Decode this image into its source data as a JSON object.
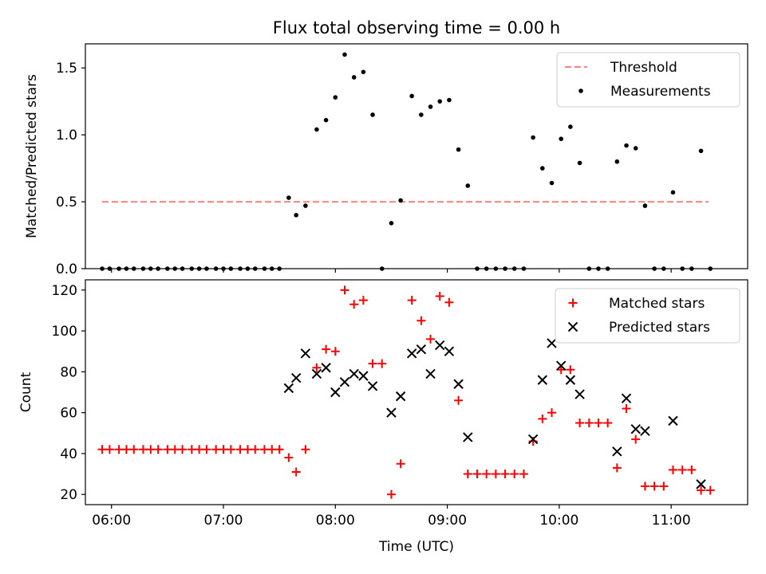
{
  "title": "Flux total observing time = 0.00 h",
  "xlabel": "Time (UTC)",
  "colors": {
    "threshold": "#ff8080",
    "measurements": "#000000",
    "matched": "#ff0000",
    "predicted": "#000000"
  },
  "chart_data": [
    {
      "type": "scatter",
      "ylabel": "Matched/Predicted stars",
      "xlim": [
        "05:46",
        "11:41"
      ],
      "ylim": [
        0,
        1.68
      ],
      "x_ticks": [
        "06:00",
        "07:00",
        "08:00",
        "09:00",
        "10:00",
        "11:00"
      ],
      "y_ticks": [
        "0.0",
        "0.5",
        "1.0",
        "1.5"
      ],
      "legend_position": "upper right",
      "series": [
        {
          "name": "Threshold",
          "kind": "line",
          "style": "dashed",
          "x": [
            "05:55",
            "11:20"
          ],
          "y": [
            0.5,
            0.5
          ]
        },
        {
          "name": "Measurements",
          "kind": "scatter",
          "marker": "dot",
          "points": [
            [
              "05:55",
              0.0
            ],
            [
              "05:59",
              0.0
            ],
            [
              "06:04",
              0.0
            ],
            [
              "06:08",
              0.0
            ],
            [
              "06:12",
              0.0
            ],
            [
              "06:17",
              0.0
            ],
            [
              "06:21",
              0.0
            ],
            [
              "06:25",
              0.0
            ],
            [
              "06:30",
              0.0
            ],
            [
              "06:34",
              0.0
            ],
            [
              "06:38",
              0.0
            ],
            [
              "06:43",
              0.0
            ],
            [
              "06:47",
              0.0
            ],
            [
              "06:51",
              0.0
            ],
            [
              "06:56",
              0.0
            ],
            [
              "07:00",
              0.0
            ],
            [
              "07:04",
              0.0
            ],
            [
              "07:09",
              0.0
            ],
            [
              "07:13",
              0.0
            ],
            [
              "07:17",
              0.0
            ],
            [
              "07:22",
              0.0
            ],
            [
              "07:26",
              0.0
            ],
            [
              "07:30",
              0.0
            ],
            [
              "07:35",
              0.53
            ],
            [
              "07:39",
              0.4
            ],
            [
              "07:44",
              0.47
            ],
            [
              "07:50",
              1.04
            ],
            [
              "07:55",
              1.11
            ],
            [
              "08:00",
              1.28
            ],
            [
              "08:05",
              1.6
            ],
            [
              "08:10",
              1.43
            ],
            [
              "08:15",
              1.47
            ],
            [
              "08:20",
              1.15
            ],
            [
              "08:25",
              0.0
            ],
            [
              "08:30",
              0.34
            ],
            [
              "08:35",
              0.51
            ],
            [
              "08:41",
              1.29
            ],
            [
              "08:46",
              1.15
            ],
            [
              "08:51",
              1.21
            ],
            [
              "08:56",
              1.25
            ],
            [
              "09:01",
              1.26
            ],
            [
              "09:06",
              0.89
            ],
            [
              "09:11",
              0.62
            ],
            [
              "09:16",
              0.0
            ],
            [
              "09:21",
              0.0
            ],
            [
              "09:26",
              0.0
            ],
            [
              "09:31",
              0.0
            ],
            [
              "09:36",
              0.0
            ],
            [
              "09:41",
              0.0
            ],
            [
              "09:46",
              0.98
            ],
            [
              "09:51",
              0.75
            ],
            [
              "09:56",
              0.64
            ],
            [
              "10:01",
              0.97
            ],
            [
              "10:06",
              1.06
            ],
            [
              "10:11",
              0.79
            ],
            [
              "10:16",
              0.0
            ],
            [
              "10:21",
              0.0
            ],
            [
              "10:26",
              0.0
            ],
            [
              "10:31",
              0.8
            ],
            [
              "10:36",
              0.92
            ],
            [
              "10:41",
              0.9
            ],
            [
              "10:46",
              0.47
            ],
            [
              "10:51",
              0.0
            ],
            [
              "10:56",
              0.0
            ],
            [
              "11:01",
              0.57
            ],
            [
              "11:06",
              0.0
            ],
            [
              "11:11",
              0.0
            ],
            [
              "11:16",
              0.88
            ],
            [
              "11:21",
              0.0
            ]
          ]
        }
      ]
    },
    {
      "type": "scatter",
      "ylabel": "Count",
      "xlim": [
        "05:46",
        "11:41"
      ],
      "ylim": [
        15,
        125
      ],
      "x_ticks": [
        "06:00",
        "07:00",
        "08:00",
        "09:00",
        "10:00",
        "11:00"
      ],
      "y_ticks": [
        "20",
        "40",
        "60",
        "80",
        "100",
        "120"
      ],
      "legend_position": "upper right",
      "series": [
        {
          "name": "Matched stars",
          "kind": "scatter",
          "marker": "plus",
          "points": [
            [
              "05:55",
              42
            ],
            [
              "05:59",
              42
            ],
            [
              "06:04",
              42
            ],
            [
              "06:08",
              42
            ],
            [
              "06:12",
              42
            ],
            [
              "06:17",
              42
            ],
            [
              "06:21",
              42
            ],
            [
              "06:25",
              42
            ],
            [
              "06:30",
              42
            ],
            [
              "06:34",
              42
            ],
            [
              "06:38",
              42
            ],
            [
              "06:43",
              42
            ],
            [
              "06:47",
              42
            ],
            [
              "06:51",
              42
            ],
            [
              "06:56",
              42
            ],
            [
              "07:00",
              42
            ],
            [
              "07:04",
              42
            ],
            [
              "07:09",
              42
            ],
            [
              "07:13",
              42
            ],
            [
              "07:17",
              42
            ],
            [
              "07:22",
              42
            ],
            [
              "07:26",
              42
            ],
            [
              "07:30",
              42
            ],
            [
              "07:35",
              38
            ],
            [
              "07:39",
              31
            ],
            [
              "07:44",
              42
            ],
            [
              "07:50",
              82
            ],
            [
              "07:55",
              91
            ],
            [
              "08:00",
              90
            ],
            [
              "08:05",
              120
            ],
            [
              "08:10",
              113
            ],
            [
              "08:15",
              115
            ],
            [
              "08:20",
              84
            ],
            [
              "08:25",
              84
            ],
            [
              "08:30",
              20
            ],
            [
              "08:35",
              35
            ],
            [
              "08:41",
              115
            ],
            [
              "08:46",
              105
            ],
            [
              "08:51",
              96
            ],
            [
              "08:56",
              117
            ],
            [
              "09:01",
              114
            ],
            [
              "09:06",
              66
            ],
            [
              "09:11",
              30
            ],
            [
              "09:16",
              30
            ],
            [
              "09:21",
              30
            ],
            [
              "09:26",
              30
            ],
            [
              "09:31",
              30
            ],
            [
              "09:36",
              30
            ],
            [
              "09:41",
              30
            ],
            [
              "09:46",
              46
            ],
            [
              "09:51",
              57
            ],
            [
              "09:56",
              60
            ],
            [
              "10:01",
              81
            ],
            [
              "10:06",
              81
            ],
            [
              "10:11",
              55
            ],
            [
              "10:16",
              55
            ],
            [
              "10:21",
              55
            ],
            [
              "10:26",
              55
            ],
            [
              "10:31",
              33
            ],
            [
              "10:36",
              62
            ],
            [
              "10:41",
              47
            ],
            [
              "10:46",
              24
            ],
            [
              "10:51",
              24
            ],
            [
              "10:56",
              24
            ],
            [
              "11:01",
              32
            ],
            [
              "11:06",
              32
            ],
            [
              "11:11",
              32
            ],
            [
              "11:16",
              22
            ],
            [
              "11:21",
              22
            ]
          ]
        },
        {
          "name": "Predicted stars",
          "kind": "scatter",
          "marker": "x",
          "points": [
            [
              "07:35",
              72
            ],
            [
              "07:39",
              77
            ],
            [
              "07:44",
              89
            ],
            [
              "07:50",
              79
            ],
            [
              "07:55",
              82
            ],
            [
              "08:00",
              70
            ],
            [
              "08:05",
              75
            ],
            [
              "08:10",
              79
            ],
            [
              "08:15",
              78
            ],
            [
              "08:20",
              73
            ],
            [
              "08:30",
              60
            ],
            [
              "08:35",
              68
            ],
            [
              "08:41",
              89
            ],
            [
              "08:46",
              91
            ],
            [
              "08:51",
              79
            ],
            [
              "08:56",
              93
            ],
            [
              "09:01",
              90
            ],
            [
              "09:06",
              74
            ],
            [
              "09:11",
              48
            ],
            [
              "09:46",
              47
            ],
            [
              "09:51",
              76
            ],
            [
              "09:56",
              94
            ],
            [
              "10:01",
              83
            ],
            [
              "10:06",
              76
            ],
            [
              "10:11",
              69
            ],
            [
              "10:31",
              41
            ],
            [
              "10:36",
              67
            ],
            [
              "10:41",
              52
            ],
            [
              "10:46",
              51
            ],
            [
              "11:01",
              56
            ],
            [
              "11:16",
              25
            ]
          ]
        }
      ]
    }
  ]
}
